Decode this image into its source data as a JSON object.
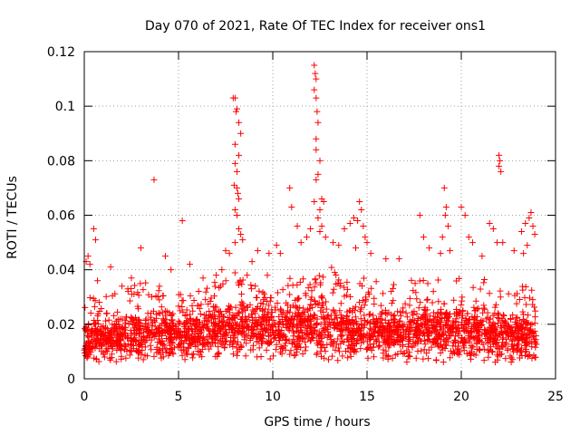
{
  "chart_data": {
    "type": "scatter",
    "title": "Day 070 of 2021, Rate Of TEC Index for receiver ons1",
    "xlabel": "GPS time / hours",
    "ylabel": "ROTI / TECUs",
    "xlim": [
      0,
      25
    ],
    "ylim": [
      0,
      0.12
    ],
    "x_ticks": [
      "0",
      "5",
      "10",
      "15",
      "20",
      "25"
    ],
    "y_ticks": [
      "0",
      "0.02",
      "0.04",
      "0.06",
      "0.08",
      "0.1",
      "0.12"
    ],
    "grid": true,
    "marker": "+",
    "color": "#ff0000",
    "series": [
      {
        "points": [
          [
            0.1,
            0.043
          ],
          [
            0.2,
            0.045
          ],
          [
            0.3,
            0.042
          ],
          [
            0.5,
            0.055
          ],
          [
            0.6,
            0.051
          ],
          [
            0.7,
            0.036
          ],
          [
            1.4,
            0.041
          ],
          [
            2.0,
            0.034
          ],
          [
            2.5,
            0.037
          ],
          [
            3.0,
            0.048
          ],
          [
            3.7,
            0.073
          ],
          [
            4.3,
            0.045
          ],
          [
            4.6,
            0.04
          ],
          [
            5.2,
            0.058
          ],
          [
            5.6,
            0.042
          ],
          [
            6.3,
            0.037
          ],
          [
            7.0,
            0.038
          ],
          [
            7.3,
            0.04
          ],
          [
            7.5,
            0.047
          ],
          [
            7.7,
            0.046
          ],
          [
            7.9,
            0.103
          ],
          [
            8.0,
            0.103
          ],
          [
            8.05,
            0.098
          ],
          [
            8.1,
            0.099
          ],
          [
            8.2,
            0.094
          ],
          [
            8.3,
            0.09
          ],
          [
            8.0,
            0.086
          ],
          [
            8.2,
            0.082
          ],
          [
            8.0,
            0.079
          ],
          [
            8.1,
            0.076
          ],
          [
            7.95,
            0.071
          ],
          [
            8.1,
            0.07
          ],
          [
            8.15,
            0.068
          ],
          [
            8.2,
            0.066
          ],
          [
            8.0,
            0.062
          ],
          [
            8.1,
            0.06
          ],
          [
            8.2,
            0.055
          ],
          [
            8.3,
            0.053
          ],
          [
            8.4,
            0.051
          ],
          [
            8.0,
            0.05
          ],
          [
            8.9,
            0.043
          ],
          [
            9.2,
            0.047
          ],
          [
            9.8,
            0.046
          ],
          [
            10.2,
            0.049
          ],
          [
            10.4,
            0.046
          ],
          [
            10.9,
            0.07
          ],
          [
            11.0,
            0.063
          ],
          [
            11.3,
            0.056
          ],
          [
            11.5,
            0.05
          ],
          [
            11.8,
            0.052
          ],
          [
            12.0,
            0.055
          ],
          [
            12.2,
            0.115
          ],
          [
            12.25,
            0.112
          ],
          [
            12.3,
            0.11
          ],
          [
            12.2,
            0.106
          ],
          [
            12.3,
            0.103
          ],
          [
            12.35,
            0.098
          ],
          [
            12.4,
            0.094
          ],
          [
            12.3,
            0.088
          ],
          [
            12.3,
            0.084
          ],
          [
            12.5,
            0.08
          ],
          [
            12.4,
            0.075
          ],
          [
            12.3,
            0.073
          ],
          [
            12.6,
            0.066
          ],
          [
            12.2,
            0.065
          ],
          [
            12.5,
            0.062
          ],
          [
            12.4,
            0.059
          ],
          [
            12.7,
            0.065
          ],
          [
            12.6,
            0.056
          ],
          [
            12.5,
            0.054
          ],
          [
            12.8,
            0.052
          ],
          [
            13.2,
            0.05
          ],
          [
            13.5,
            0.049
          ],
          [
            13.8,
            0.055
          ],
          [
            14.1,
            0.057
          ],
          [
            14.3,
            0.059
          ],
          [
            14.6,
            0.065
          ],
          [
            14.7,
            0.062
          ],
          [
            14.5,
            0.058
          ],
          [
            14.8,
            0.056
          ],
          [
            14.9,
            0.052
          ],
          [
            15.0,
            0.05
          ],
          [
            14.4,
            0.048
          ],
          [
            15.2,
            0.046
          ],
          [
            16.0,
            0.044
          ],
          [
            16.7,
            0.044
          ],
          [
            17.8,
            0.06
          ],
          [
            18.0,
            0.052
          ],
          [
            18.3,
            0.048
          ],
          [
            18.9,
            0.046
          ],
          [
            19.1,
            0.07
          ],
          [
            19.2,
            0.063
          ],
          [
            19.15,
            0.06
          ],
          [
            19.3,
            0.056
          ],
          [
            19.0,
            0.052
          ],
          [
            19.4,
            0.047
          ],
          [
            20.0,
            0.063
          ],
          [
            20.2,
            0.06
          ],
          [
            20.4,
            0.052
          ],
          [
            20.6,
            0.05
          ],
          [
            21.1,
            0.045
          ],
          [
            21.5,
            0.057
          ],
          [
            21.7,
            0.055
          ],
          [
            21.9,
            0.05
          ],
          [
            22.0,
            0.082
          ],
          [
            22.05,
            0.08
          ],
          [
            22.0,
            0.078
          ],
          [
            22.1,
            0.076
          ],
          [
            22.2,
            0.05
          ],
          [
            22.8,
            0.047
          ],
          [
            23.2,
            0.054
          ],
          [
            23.4,
            0.057
          ],
          [
            23.6,
            0.059
          ],
          [
            23.7,
            0.061
          ],
          [
            23.8,
            0.056
          ],
          [
            23.9,
            0.053
          ],
          [
            23.5,
            0.049
          ],
          [
            23.3,
            0.046
          ]
        ],
        "dense_band": {
          "x_range": [
            0,
            24
          ],
          "profile_hours": [
            0,
            1,
            2,
            3,
            4,
            5,
            6,
            7,
            8,
            9,
            10,
            11,
            12,
            13,
            14,
            15,
            16,
            17,
            18,
            19,
            20,
            21,
            22,
            23,
            24
          ],
          "low": [
            0.006,
            0.006,
            0.006,
            0.007,
            0.007,
            0.006,
            0.008,
            0.008,
            0.008,
            0.008,
            0.007,
            0.008,
            0.008,
            0.007,
            0.006,
            0.007,
            0.006,
            0.006,
            0.006,
            0.006,
            0.007,
            0.006,
            0.006,
            0.006,
            0.008
          ],
          "high": [
            0.03,
            0.03,
            0.032,
            0.036,
            0.034,
            0.032,
            0.032,
            0.036,
            0.04,
            0.038,
            0.038,
            0.04,
            0.04,
            0.042,
            0.036,
            0.038,
            0.034,
            0.036,
            0.038,
            0.036,
            0.038,
            0.038,
            0.034,
            0.036,
            0.034
          ],
          "core": [
            0.014,
            0.015,
            0.016,
            0.016,
            0.016,
            0.016,
            0.017,
            0.018,
            0.019,
            0.019,
            0.019,
            0.019,
            0.019,
            0.019,
            0.018,
            0.018,
            0.017,
            0.017,
            0.018,
            0.018,
            0.018,
            0.018,
            0.017,
            0.016,
            0.015
          ]
        }
      }
    ]
  }
}
